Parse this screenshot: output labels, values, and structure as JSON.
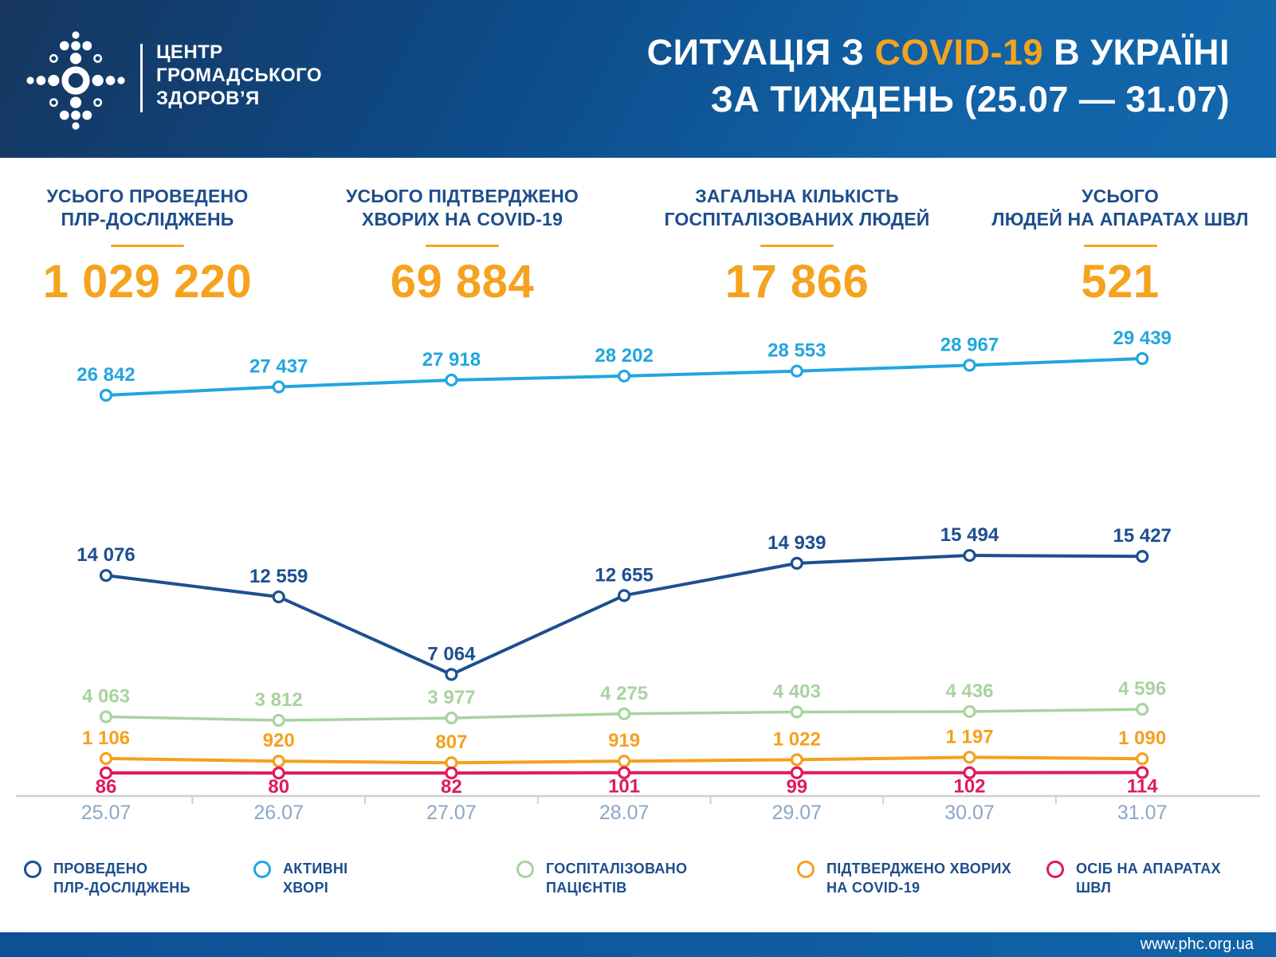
{
  "header": {
    "logo_text_lines": [
      "ЦЕНТР",
      "ГРОМАДСЬКОГО",
      "ЗДОРОВ’Я"
    ],
    "title_line1_pre": "СИТУАЦІЯ З ",
    "title_line1_highlight": "COVID-19",
    "title_line1_post": " В УКРАЇНІ",
    "title_line2": "ЗА ТИЖДЕНЬ (25.07 — 31.07)"
  },
  "stats": [
    {
      "label_line1": "УСЬОГО ПРОВЕДЕНО",
      "label_line2": "ПЛР-ДОСЛІДЖЕНЬ",
      "value": "1 029 220"
    },
    {
      "label_line1": "УСЬОГО ПІДТВЕРДЖЕНО",
      "label_line2": "ХВОРИХ НА COVID-19",
      "value": "69 884"
    },
    {
      "label_line1": "ЗАГАЛЬНА КІЛЬКІСТЬ",
      "label_line2": "ГОСПІТАЛІЗОВАНИХ ЛЮДЕЙ",
      "value": "17 866"
    },
    {
      "label_line1": "УСЬОГО",
      "label_line2": "ЛЮДЕЙ НА АПАРАТАХ ШВЛ",
      "value": "521"
    }
  ],
  "chart_data": {
    "type": "line",
    "categories": [
      "25.07",
      "26.07",
      "27.07",
      "28.07",
      "29.07",
      "30.07",
      "31.07"
    ],
    "series": [
      {
        "key": "pcr-tests",
        "name": "ПРОВЕДЕНО ПЛР-ДОСЛІДЖЕНЬ",
        "color": "#1d4f90",
        "values": [
          14076,
          12559,
          7064,
          12655,
          14939,
          15494,
          15427
        ],
        "label_position": "above"
      },
      {
        "key": "active-cases",
        "name": "АКТИВНІ ХВОРІ",
        "color": "#21a6de",
        "values": [
          26842,
          27437,
          27918,
          28202,
          28553,
          28967,
          29439
        ],
        "label_position": "above"
      },
      {
        "key": "hospitalized",
        "name": "ГОСПІТАЛІЗОВАНО ПАЦІЄНТІВ",
        "color": "#a8d3a0",
        "values": [
          4063,
          3812,
          3977,
          4275,
          4403,
          4436,
          4596
        ],
        "label_position": "above"
      },
      {
        "key": "confirmed",
        "name": "ПІДТВЕРДЖЕНО ХВОРИХ НА COVID-19",
        "color": "#f5a01e",
        "values": [
          1106,
          920,
          807,
          919,
          1022,
          1197,
          1090
        ],
        "label_position": "above"
      },
      {
        "key": "ventilated",
        "name": "ОСІБ НА АПАРАТАХ ШВЛ",
        "color": "#e01a5d",
        "values": [
          86,
          80,
          82,
          101,
          99,
          102,
          114
        ],
        "label_position": "below"
      }
    ],
    "title": "СИТУАЦІЯ З COVID-19 В УКРАЇНІ ЗА ТИЖДЕНЬ (25.07 — 31.07)",
    "xlabel": "",
    "ylabel": "",
    "grid": false,
    "legend_position": "bottom"
  },
  "legend": [
    {
      "label_line1": "ПРОВЕДЕНО",
      "label_line2": "ПЛР-ДОСЛІДЖЕНЬ",
      "color": "#1d4f90"
    },
    {
      "label_line1": "АКТИВНІ",
      "label_line2": "ХВОРІ",
      "color": "#21a6de"
    },
    {
      "label_line1": "ГОСПІТАЛІЗОВАНО",
      "label_line2": "ПАЦІЄНТІВ",
      "color": "#a8d3a0"
    },
    {
      "label_line1": "ПІДТВЕРДЖЕНО ХВОРИХ",
      "label_line2": "НА COVID-19",
      "color": "#f5a01e"
    },
    {
      "label_line1": "ОСІБ НА АПАРАТАХ",
      "label_line2": "ШВЛ",
      "color": "#e01a5d"
    }
  ],
  "footer": {
    "url": "www.phc.org.ua"
  },
  "colors": {
    "accent_orange": "#f5a31f",
    "navy_text": "#1d4e8c",
    "header_gradient_start": "#16365f",
    "header_gradient_end": "#1267ac",
    "axis_line": "#cfcfcf",
    "date_label": "#8ba7c6"
  }
}
